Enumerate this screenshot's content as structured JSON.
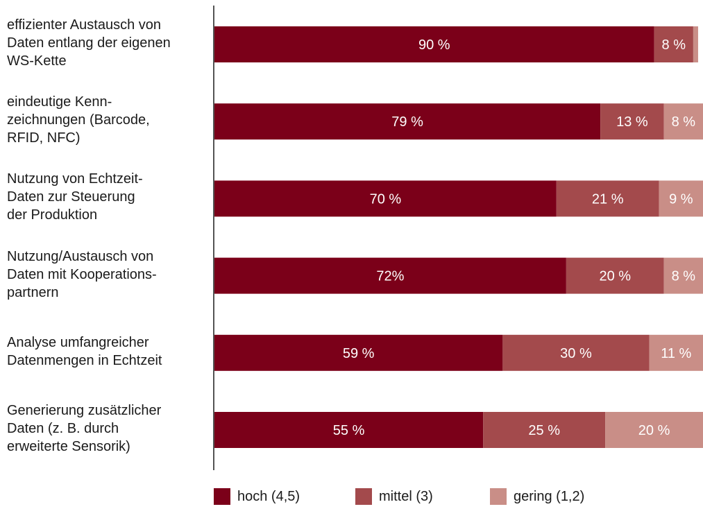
{
  "chart_data": {
    "type": "bar",
    "orientation": "horizontal",
    "stacked": true,
    "categories": [
      [
        "effizienter Austausch von",
        "Daten entlang der eigenen",
        "WS-Kette"
      ],
      [
        "eindeutige Kenn-",
        "zeichnungen (Barcode,",
        "RFID, NFC)"
      ],
      [
        "Nutzung von Echtzeit-",
        "Daten zur Steuerung",
        "der Produktion"
      ],
      [
        "Nutzung/Austausch von",
        "Daten mit Kooperations-",
        "partnern"
      ],
      [
        "Analyse umfangreicher",
        "Datenmengen in Echtzeit"
      ],
      [
        "Generierung zusätzlicher",
        "Daten (z. B. durch",
        "erweiterte Sensorik)"
      ]
    ],
    "series": [
      {
        "name": "hoch (4,5)",
        "color": "#7b0019",
        "values": [
          90,
          79,
          70,
          72,
          59,
          55
        ],
        "labels": [
          "90 %",
          "79 %",
          "70 %",
          "72%",
          "59 %",
          "55 %"
        ]
      },
      {
        "name": "mittel (3)",
        "color": "#a34a4c",
        "values": [
          8,
          13,
          21,
          20,
          30,
          25
        ],
        "labels": [
          "8 %",
          "13 %",
          "21 %",
          "20 %",
          "30 %",
          "25 %"
        ]
      },
      {
        "name": "gering (1,2)",
        "color": "#c98e87",
        "values": [
          1,
          8,
          9,
          8,
          11,
          20
        ],
        "labels": [
          "",
          "8 %",
          "9 %",
          "8 %",
          "11 %",
          "20 %"
        ]
      }
    ],
    "xlim": [
      0,
      100
    ],
    "grid": false,
    "legend_position": "bottom"
  }
}
